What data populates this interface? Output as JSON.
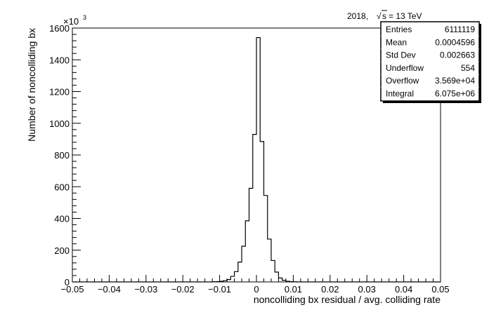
{
  "chart_data": {
    "type": "histogram",
    "title": "",
    "xlabel": "noncolliding bx residual / avg. colliding rate",
    "ylabel": "Number of noncolliding bx",
    "y_multiplier": "×10",
    "y_multiplier_exp": "3",
    "annotation_year": "2018,",
    "annotation_energy": "= 13 TeV",
    "annotation_sqrt": "√",
    "annotation_s": "s",
    "xlim": [
      -0.05,
      0.05
    ],
    "ylim": [
      0,
      1600
    ],
    "x_ticks": [
      "−0.05",
      "−0.04",
      "−0.03",
      "−0.02",
      "−0.01",
      "0",
      "0.01",
      "0.02",
      "0.03",
      "0.04",
      "0.05"
    ],
    "y_ticks": [
      "0",
      "200",
      "400",
      "600",
      "800",
      "1000",
      "1200",
      "1400",
      "1600"
    ],
    "grid": false,
    "legend": "none",
    "bins": {
      "edges": [
        -0.012,
        -0.011,
        -0.01,
        -0.009,
        -0.008,
        -0.007,
        -0.006,
        -0.005,
        -0.004,
        -0.003,
        -0.002,
        -0.001,
        0.0,
        0.001,
        0.002,
        0.003,
        0.004,
        0.005,
        0.006,
        0.007,
        0.008,
        0.009,
        0.01,
        0.011,
        0.012
      ],
      "values": [
        1,
        2,
        4,
        8,
        15,
        35,
        65,
        125,
        225,
        385,
        590,
        930,
        1540,
        885,
        545,
        270,
        135,
        62,
        25,
        10,
        4,
        2,
        1,
        0
      ]
    }
  },
  "stats_box": {
    "rows": [
      {
        "label": "Entries",
        "value": "6111119"
      },
      {
        "label": "Mean",
        "value": "0.0004596"
      },
      {
        "label": "Std Dev",
        "value": "0.002663"
      },
      {
        "label": "Underflow",
        "value": "554"
      },
      {
        "label": "Overflow",
        "value": "3.569e+04"
      },
      {
        "label": "Integral",
        "value": "6.075e+06"
      }
    ]
  }
}
